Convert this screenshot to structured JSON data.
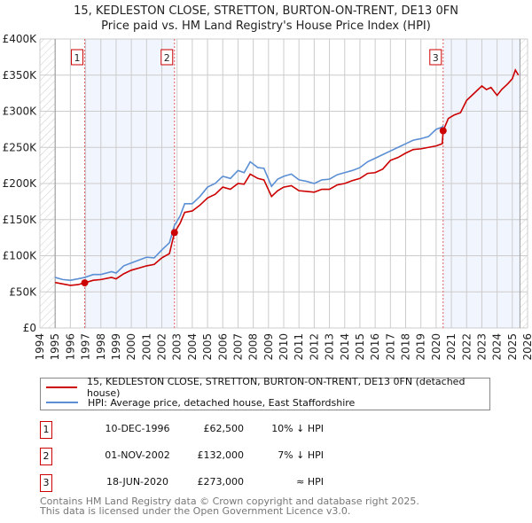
{
  "chart_data": {
    "type": "line",
    "title": "15, KEDLESTON CLOSE, STRETTON, BURTON-ON-TRENT, DE13 0FN",
    "subtitle": "Price paid vs. HM Land Registry's House Price Index (HPI)",
    "xlim": [
      1994,
      2026
    ],
    "ylim": [
      0,
      400000
    ],
    "x_ticks": [
      "1994",
      "1995",
      "1996",
      "1997",
      "1998",
      "1999",
      "2000",
      "2001",
      "2002",
      "2003",
      "2004",
      "2005",
      "2006",
      "2007",
      "2008",
      "2009",
      "2010",
      "2011",
      "2012",
      "2013",
      "2014",
      "2015",
      "2016",
      "2017",
      "2018",
      "2019",
      "2020",
      "2021",
      "2022",
      "2023",
      "2024",
      "2025",
      "2026"
    ],
    "y_ticks": [
      {
        "v": 0,
        "l": "£0"
      },
      {
        "v": 50000,
        "l": "£50K"
      },
      {
        "v": 100000,
        "l": "£100K"
      },
      {
        "v": 150000,
        "l": "£150K"
      },
      {
        "v": 200000,
        "l": "£200K"
      },
      {
        "v": 250000,
        "l": "£250K"
      },
      {
        "v": 300000,
        "l": "£300K"
      },
      {
        "v": 350000,
        "l": "£350K"
      },
      {
        "v": 400000,
        "l": "£400K"
      }
    ],
    "grid": true,
    "hatched_ranges": [
      [
        1994,
        1995
      ],
      [
        2025.5,
        2026
      ]
    ],
    "shaded_ranges": [
      [
        1996.94,
        2002.83
      ],
      [
        2020.46,
        2025.5
      ]
    ],
    "series": [
      {
        "name": "15, KEDLESTON CLOSE, STRETTON, BURTON-ON-TRENT, DE13 0FN (detached house)",
        "color": "#cc0000",
        "x": [
          1995,
          1995.5,
          1996,
          1996.5,
          1996.94,
          1997.5,
          1998,
          1998.7,
          1999,
          1999.5,
          2000,
          2000.5,
          2001,
          2001.5,
          2002,
          2002.5,
          2002.83,
          2003.2,
          2003.5,
          2004,
          2004.5,
          2005,
          2005.5,
          2006,
          2006.5,
          2007,
          2007.4,
          2007.8,
          2008.3,
          2008.7,
          2009.2,
          2009.6,
          2010,
          2010.5,
          2011,
          2011.5,
          2012,
          2012.5,
          2013,
          2013.5,
          2014,
          2014.5,
          2015,
          2015.5,
          2016,
          2016.5,
          2017,
          2017.5,
          2018,
          2018.5,
          2019,
          2019.5,
          2020,
          2020.4,
          2020.46,
          2020.8,
          2021.2,
          2021.6,
          2022,
          2022.5,
          2023,
          2023.3,
          2023.6,
          2024,
          2024.3,
          2024.7,
          2025,
          2025.2,
          2025.4
        ],
        "y": [
          63000,
          61000,
          59000,
          60000,
          62500,
          66000,
          67000,
          70000,
          68000,
          75000,
          80000,
          83000,
          86000,
          88000,
          97000,
          103000,
          132000,
          145000,
          160000,
          162000,
          170000,
          180000,
          185000,
          195000,
          192000,
          200000,
          199000,
          213000,
          207000,
          205000,
          182000,
          190000,
          195000,
          197000,
          190000,
          189000,
          188000,
          192000,
          192000,
          198000,
          200000,
          204000,
          207000,
          214000,
          215000,
          220000,
          232000,
          236000,
          242000,
          247000,
          248000,
          250000,
          252000,
          255000,
          273000,
          290000,
          295000,
          298000,
          315000,
          325000,
          335000,
          330000,
          333000,
          322000,
          330000,
          338000,
          345000,
          357000,
          350000
        ]
      },
      {
        "name": "HPI: Average price, detached house, East Staffordshire",
        "color": "#5b8fd4",
        "x": [
          1995,
          1995.5,
          1996,
          1996.5,
          1996.94,
          1997.5,
          1998,
          1998.7,
          1999,
          1999.5,
          2000,
          2000.5,
          2001,
          2001.5,
          2002,
          2002.5,
          2002.83,
          2003.2,
          2003.5,
          2004,
          2004.5,
          2005,
          2005.5,
          2006,
          2006.5,
          2007,
          2007.4,
          2007.8,
          2008.3,
          2008.7,
          2009.2,
          2009.6,
          2010,
          2010.5,
          2011,
          2011.5,
          2012,
          2012.5,
          2013,
          2013.5,
          2014,
          2014.5,
          2015,
          2015.5,
          2016,
          2016.5,
          2017,
          2017.5,
          2018,
          2018.5,
          2019,
          2019.5,
          2020,
          2020.4,
          2020.46
        ],
        "y": [
          70000,
          67000,
          66000,
          68000,
          70000,
          74000,
          74000,
          78000,
          76000,
          86000,
          90000,
          94000,
          98000,
          97000,
          108000,
          118000,
          142000,
          155000,
          172000,
          172000,
          182000,
          195000,
          200000,
          210000,
          207000,
          218000,
          215000,
          230000,
          222000,
          221000,
          196000,
          206000,
          210000,
          213000,
          205000,
          203000,
          200000,
          205000,
          206000,
          212000,
          215000,
          218000,
          222000,
          230000,
          235000,
          240000,
          245000,
          250000,
          255000,
          260000,
          262000,
          265000,
          275000,
          278000,
          280000
        ]
      }
    ],
    "sales": [
      {
        "n": "1",
        "x": 1996.94,
        "y": 62500,
        "date": "10-DEC-1996",
        "price": "£62,500",
        "hpi": "10% ↓ HPI"
      },
      {
        "n": "2",
        "x": 2002.83,
        "y": 132000,
        "date": "01-NOV-2002",
        "price": "£132,000",
        "hpi": "7% ↓ HPI"
      },
      {
        "n": "3",
        "x": 2020.46,
        "y": 273000,
        "date": "18-JUN-2020",
        "price": "£273,000",
        "hpi": "≈ HPI"
      }
    ]
  },
  "legend": {
    "red": "15, KEDLESTON CLOSE, STRETTON, BURTON-ON-TRENT, DE13 0FN (detached house)",
    "blue": "HPI: Average price, detached house, East Staffordshire"
  },
  "footer": {
    "line1": "Contains HM Land Registry data © Crown copyright and database right 2025.",
    "line2": "This data is licensed under the Open Government Licence v3.0."
  }
}
